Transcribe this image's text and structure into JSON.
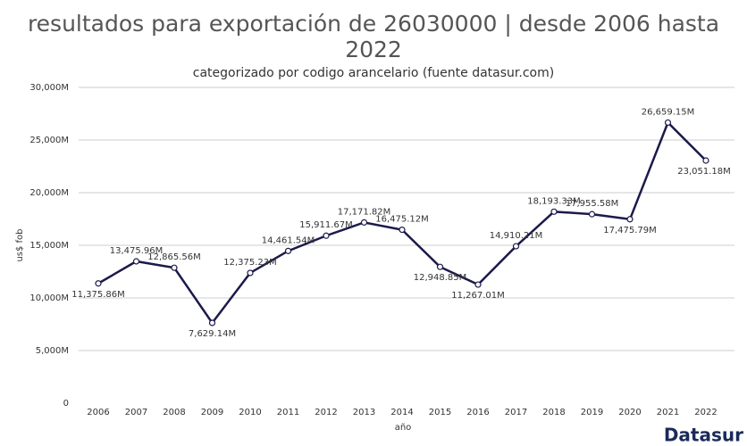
{
  "chart_data": {
    "type": "line",
    "title": "resultados para exportación de 26030000 | desde 2006 hasta 2022",
    "subtitle": "categorizado por codigo arancelario (fuente datasur.com)",
    "x_label": "año",
    "y_label": "us$ fob",
    "logo": "Datasur",
    "categories": [
      "2006",
      "2007",
      "2008",
      "2009",
      "2010",
      "2011",
      "2012",
      "2013",
      "2014",
      "2015",
      "2016",
      "2017",
      "2018",
      "2019",
      "2020",
      "2021",
      "2022"
    ],
    "series": [
      {
        "name": "us$ fob",
        "color": "#1b1a4a",
        "values": [
          11375.86,
          13475.96,
          12865.56,
          7629.14,
          12375.23,
          14461.54,
          15911.67,
          17171.82,
          16475.12,
          12948.85,
          11267.01,
          14910.21,
          18193.33,
          17955.58,
          17475.79,
          26659.15,
          23051.18
        ],
        "value_labels": [
          "11,375.86M",
          "13,475.96M",
          "12,865.56M",
          "7,629.14M",
          "12,375.23M",
          "14,461.54M",
          "15,911.67M",
          "17,171.82M",
          "16,475.12M",
          "12,948.85M",
          "11,267.01M",
          "14,910.21M",
          "18,193.33M",
          "17,955.58M",
          "17,475.79M",
          "26,659.15M",
          "23,051.18M"
        ]
      }
    ],
    "ylim": [
      0,
      30000
    ],
    "yticks": [
      0,
      {
        "value": 5000,
        "label": "5,000M"
      },
      {
        "value": 10000,
        "label": "10,000M"
      },
      {
        "value": 15000,
        "label": "15,000M"
      },
      {
        "value": 20000,
        "label": "20,000M"
      },
      {
        "value": 25000,
        "label": "25,000M"
      },
      {
        "value": 30000,
        "label": "30,000M"
      }
    ],
    "grid": true
  }
}
